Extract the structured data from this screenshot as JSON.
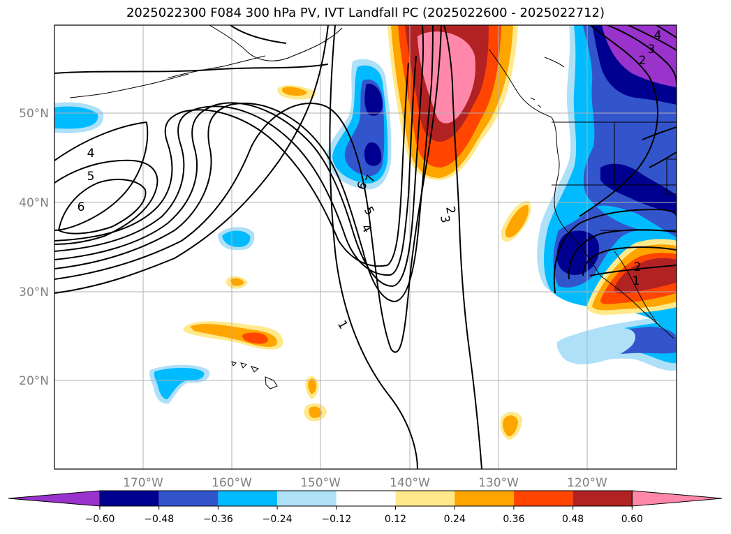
{
  "title": "2025022300 F084 300 hPa PV, IVT Landfall PC (2025022600 - 2025022712)",
  "colors": {
    "neg_060": "#9933cc",
    "neg_048": "#000090",
    "neg_036": "#3355cc",
    "neg_024": "#00bbff",
    "neg_012": "#aee0f8",
    "zero": "#ffffff",
    "pos_012": "#ffe98a",
    "pos_024": "#ffa500",
    "pos_036": "#ff4500",
    "pos_048": "#b22222",
    "pos_060": "#ff88aa",
    "contour": "#000000",
    "grid": "#b0b0b0"
  },
  "map": {
    "lon_labels": [
      "170°W",
      "160°W",
      "150°W",
      "140°W",
      "130°W",
      "120°W"
    ],
    "lat_labels": [
      "50°N",
      "40°N",
      "30°N",
      "20°N"
    ]
  },
  "contour_labels": [
    "1",
    "2",
    "3",
    "4",
    "5",
    "6",
    "7"
  ],
  "colorbar": {
    "ticks": [
      "−0.60",
      "−0.48",
      "−0.36",
      "−0.24",
      "−0.12",
      "0.12",
      "0.24",
      "0.36",
      "0.48",
      "0.60"
    ],
    "colors": [
      "#9933cc",
      "#000090",
      "#3355cc",
      "#00bbff",
      "#aee0f8",
      "#ffffff",
      "#ffe98a",
      "#ffa500",
      "#ff4500",
      "#b22222",
      "#ff88aa"
    ]
  }
}
